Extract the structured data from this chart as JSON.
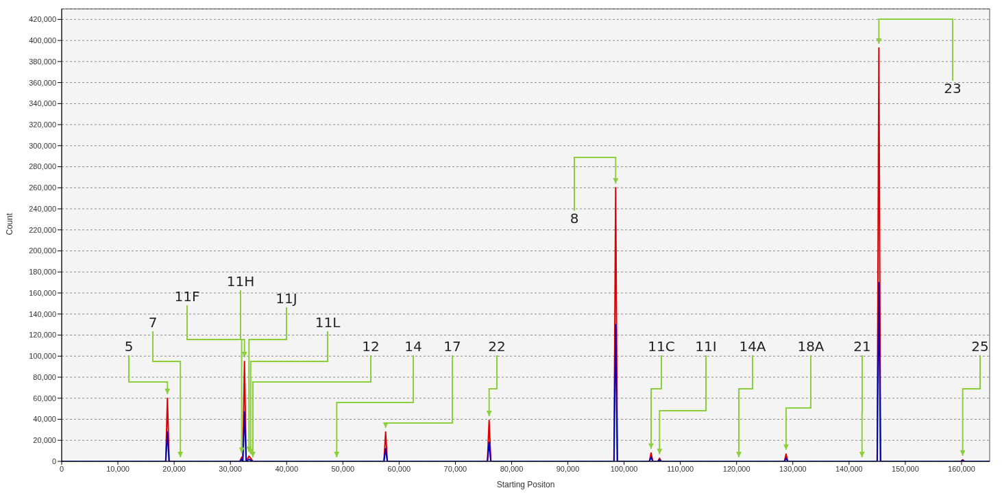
{
  "chart_data": {
    "type": "line",
    "xlabel": "Starting Positon",
    "ylabel": "Count",
    "xlim": [
      0,
      165000
    ],
    "xticks": [
      0,
      {
        "value": 10000,
        "label": "10,000"
      },
      {
        "value": 20000,
        "label": "20,000"
      },
      {
        "value": 30000,
        "label": "30,000"
      },
      {
        "value": 40000,
        "label": "40,000"
      },
      {
        "value": 50000,
        "label": "50,000"
      },
      {
        "value": 60000,
        "label": "60,000"
      },
      {
        "value": 70000,
        "label": "70,000"
      },
      {
        "value": 80000,
        "label": "80,000"
      },
      {
        "value": 90000,
        "label": "90,000"
      },
      {
        "value": 100000,
        "label": "100,000"
      },
      {
        "value": 110000,
        "label": "110,000"
      },
      {
        "value": 120000,
        "label": "120,000"
      },
      {
        "value": 130000,
        "label": "130,000"
      },
      {
        "value": 140000,
        "label": "140,000"
      },
      {
        "value": 150000,
        "label": "150,000"
      },
      {
        "value": 160000,
        "label": "160,000"
      }
    ],
    "ylim": [
      0,
      430000
    ],
    "yticks": [
      0,
      {
        "value": 20000,
        "label": "20,000"
      },
      {
        "value": 40000,
        "label": "40,000"
      },
      {
        "value": 60000,
        "label": "60,000"
      },
      {
        "value": 80000,
        "label": "80,000"
      },
      {
        "value": 100000,
        "label": "100,000"
      },
      {
        "value": 120000,
        "label": "120,000"
      },
      {
        "value": 140000,
        "label": "140,000"
      },
      {
        "value": 160000,
        "label": "160,000"
      },
      {
        "value": 180000,
        "label": "180,000"
      },
      {
        "value": 200000,
        "label": "200,000"
      },
      {
        "value": 220000,
        "label": "220,000"
      },
      {
        "value": 240000,
        "label": "240,000"
      },
      {
        "value": 260000,
        "label": "260,000"
      },
      {
        "value": 280000,
        "label": "280,000"
      },
      {
        "value": 300000,
        "label": "300,000"
      },
      {
        "value": 320000,
        "label": "320,000"
      },
      {
        "value": 340000,
        "label": "340,000"
      },
      {
        "value": 360000,
        "label": "360,000"
      },
      {
        "value": 380000,
        "label": "380,000"
      },
      {
        "value": 400000,
        "label": "400,000"
      },
      {
        "value": 420000,
        "label": "420,000"
      }
    ],
    "grid": "y",
    "marker": "none",
    "line_style": "solid",
    "series": [
      {
        "color": "#e00000",
        "x": [
          0,
          18500,
          18800,
          19100,
          21100,
          31700,
          32000,
          32200,
          32500,
          32800,
          33300,
          33600,
          34000,
          48900,
          57300,
          57600,
          57900,
          75700,
          76000,
          76300,
          98200,
          98500,
          98800,
          104500,
          104800,
          105100,
          106000,
          106300,
          106600,
          120400,
          128500,
          128800,
          129100,
          142300,
          145000,
          145300,
          145600,
          159900,
          160200,
          160500,
          165000
        ],
        "values": [
          0,
          0,
          60000,
          0,
          0,
          0,
          4000,
          0,
          95000,
          0,
          5000,
          3000,
          0,
          0,
          0,
          28000,
          0,
          0,
          39000,
          0,
          0,
          260000,
          0,
          0,
          8000,
          0,
          0,
          3000,
          0,
          0,
          0,
          7000,
          0,
          0,
          0,
          393000,
          0,
          0,
          1500,
          0,
          0
        ]
      },
      {
        "color": "#0000c0",
        "x": [
          0,
          18500,
          18800,
          19100,
          21100,
          31700,
          32000,
          32200,
          32500,
          32800,
          33300,
          33600,
          34000,
          48900,
          57300,
          57600,
          57900,
          75700,
          76000,
          76300,
          98200,
          98500,
          98800,
          104500,
          104800,
          105100,
          106000,
          106300,
          106600,
          120400,
          128500,
          128800,
          129100,
          142300,
          145000,
          145300,
          145600,
          159900,
          160200,
          160500,
          165000
        ],
        "values": [
          0,
          0,
          28000,
          0,
          0,
          0,
          2000,
          0,
          47000,
          0,
          2000,
          1000,
          0,
          0,
          0,
          12000,
          0,
          0,
          18000,
          0,
          0,
          130000,
          0,
          0,
          4000,
          0,
          0,
          1500,
          0,
          0,
          0,
          3000,
          0,
          0,
          0,
          170000,
          0,
          0,
          800,
          0,
          0
        ]
      }
    ],
    "annotations": [
      {
        "text": "5",
        "x": 18800,
        "y": 60000
      },
      {
        "text": "7",
        "x": 21100,
        "y": 0
      },
      {
        "text": "11F",
        "x": 32000,
        "y": 4000
      },
      {
        "text": "11H",
        "x": 32500,
        "y": 95000
      },
      {
        "text": "11J",
        "x": 33300,
        "y": 5000
      },
      {
        "text": "11L",
        "x": 33600,
        "y": 3000
      },
      {
        "text": "12",
        "x": 34000,
        "y": 0
      },
      {
        "text": "14",
        "x": 48900,
        "y": 0
      },
      {
        "text": "17",
        "x": 57600,
        "y": 28000
      },
      {
        "text": "22",
        "x": 76000,
        "y": 39000
      },
      {
        "text": "8",
        "x": 98500,
        "y": 260000
      },
      {
        "text": "11C",
        "x": 104800,
        "y": 8000
      },
      {
        "text": "11I",
        "x": 106300,
        "y": 3000
      },
      {
        "text": "14A",
        "x": 120400,
        "y": 0
      },
      {
        "text": "18A",
        "x": 128800,
        "y": 7000
      },
      {
        "text": "21",
        "x": 142300,
        "y": 0
      },
      {
        "text": "23",
        "x": 145300,
        "y": 393000
      },
      {
        "text": "25",
        "x": 160200,
        "y": 1500
      }
    ]
  }
}
